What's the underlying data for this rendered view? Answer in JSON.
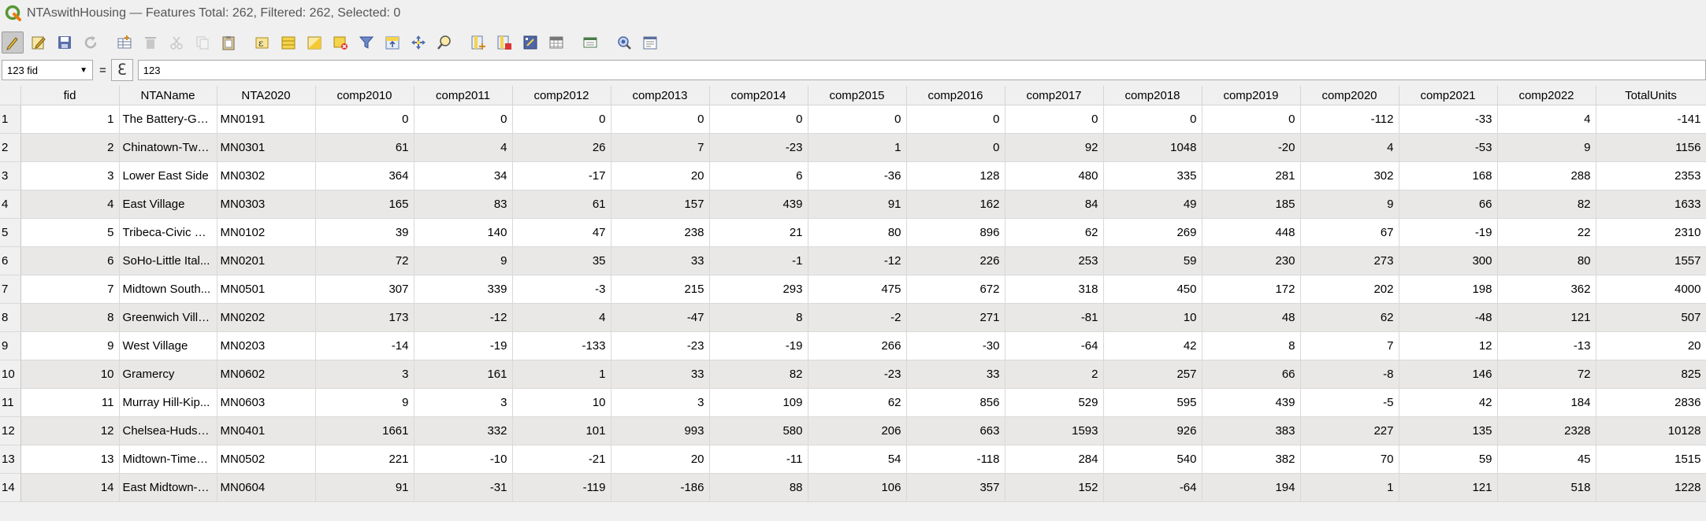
{
  "window": {
    "title": "NTAswithHousing — Features Total: 262, Filtered: 262, Selected: 0"
  },
  "toolbar": {
    "icons": [
      "toggle-editing-icon",
      "multi-edit-icon",
      "save-edits-icon",
      "reload-icon",
      "add-feature-icon",
      "delete-features-icon",
      "cut-icon",
      "copy-icon",
      "paste-icon",
      "select-by-expression-icon",
      "select-all-icon",
      "invert-selection-icon",
      "deselect-all-icon",
      "filter-select-icon",
      "move-selection-top-icon",
      "pan-to-selection-icon",
      "zoom-to-selection-icon",
      "new-field-icon",
      "delete-field-icon",
      "field-calculator-icon",
      "conditional-formatting-icon",
      "dock-table-icon",
      "actions-icon",
      "form-view-icon"
    ]
  },
  "expression": {
    "field": "123 fid",
    "equals": "=",
    "epsilon": "ℇ",
    "value": "123"
  },
  "table": {
    "columns": [
      "fid",
      "NTAName",
      "NTA2020",
      "comp2010",
      "comp2011",
      "comp2012",
      "comp2013",
      "comp2014",
      "comp2015",
      "comp2016",
      "comp2017",
      "comp2018",
      "comp2019",
      "comp2020",
      "comp2021",
      "comp2022",
      "TotalUnits"
    ],
    "rows": [
      {
        "n": "1",
        "cells": [
          "1",
          "The Battery-Go...",
          "MN0191",
          "0",
          "0",
          "0",
          "0",
          "0",
          "0",
          "0",
          "0",
          "0",
          "0",
          "-112",
          "-33",
          "4",
          "-141"
        ]
      },
      {
        "n": "2",
        "cells": [
          "2",
          "Chinatown-Two...",
          "MN0301",
          "61",
          "4",
          "26",
          "7",
          "-23",
          "1",
          "0",
          "92",
          "1048",
          "-20",
          "4",
          "-53",
          "9",
          "1156"
        ]
      },
      {
        "n": "3",
        "cells": [
          "3",
          "Lower East Side",
          "MN0302",
          "364",
          "34",
          "-17",
          "20",
          "6",
          "-36",
          "128",
          "480",
          "335",
          "281",
          "302",
          "168",
          "288",
          "2353"
        ]
      },
      {
        "n": "4",
        "cells": [
          "4",
          "East Village",
          "MN0303",
          "165",
          "83",
          "61",
          "157",
          "439",
          "91",
          "162",
          "84",
          "49",
          "185",
          "9",
          "66",
          "82",
          "1633"
        ]
      },
      {
        "n": "5",
        "cells": [
          "5",
          "Tribeca-Civic Ce...",
          "MN0102",
          "39",
          "140",
          "47",
          "238",
          "21",
          "80",
          "896",
          "62",
          "269",
          "448",
          "67",
          "-19",
          "22",
          "2310"
        ]
      },
      {
        "n": "6",
        "cells": [
          "6",
          "SoHo-Little Ital...",
          "MN0201",
          "72",
          "9",
          "35",
          "33",
          "-1",
          "-12",
          "226",
          "253",
          "59",
          "230",
          "273",
          "300",
          "80",
          "1557"
        ]
      },
      {
        "n": "7",
        "cells": [
          "7",
          "Midtown South...",
          "MN0501",
          "307",
          "339",
          "-3",
          "215",
          "293",
          "475",
          "672",
          "318",
          "450",
          "172",
          "202",
          "198",
          "362",
          "4000"
        ]
      },
      {
        "n": "8",
        "cells": [
          "8",
          "Greenwich Villa...",
          "MN0202",
          "173",
          "-12",
          "4",
          "-47",
          "8",
          "-2",
          "271",
          "-81",
          "10",
          "48",
          "62",
          "-48",
          "121",
          "507"
        ]
      },
      {
        "n": "9",
        "cells": [
          "9",
          "West Village",
          "MN0203",
          "-14",
          "-19",
          "-133",
          "-23",
          "-19",
          "266",
          "-30",
          "-64",
          "42",
          "8",
          "7",
          "12",
          "-13",
          "20"
        ]
      },
      {
        "n": "10",
        "cells": [
          "10",
          "Gramercy",
          "MN0602",
          "3",
          "161",
          "1",
          "33",
          "82",
          "-23",
          "33",
          "2",
          "257",
          "66",
          "-8",
          "146",
          "72",
          "825"
        ]
      },
      {
        "n": "11",
        "cells": [
          "11",
          "Murray Hill-Kip...",
          "MN0603",
          "9",
          "3",
          "10",
          "3",
          "109",
          "62",
          "856",
          "529",
          "595",
          "439",
          "-5",
          "42",
          "184",
          "2836"
        ]
      },
      {
        "n": "12",
        "cells": [
          "12",
          "Chelsea-Hudso...",
          "MN0401",
          "1661",
          "332",
          "101",
          "993",
          "580",
          "206",
          "663",
          "1593",
          "926",
          "383",
          "227",
          "135",
          "2328",
          "10128"
        ]
      },
      {
        "n": "13",
        "cells": [
          "13",
          "Midtown-Times...",
          "MN0502",
          "221",
          "-10",
          "-21",
          "20",
          "-11",
          "54",
          "-118",
          "284",
          "540",
          "382",
          "70",
          "59",
          "45",
          "1515"
        ]
      },
      {
        "n": "14",
        "cells": [
          "14",
          "East Midtown-T...",
          "MN0604",
          "91",
          "-31",
          "-119",
          "-186",
          "88",
          "106",
          "357",
          "152",
          "-64",
          "194",
          "1",
          "121",
          "518",
          "1228"
        ]
      }
    ]
  }
}
